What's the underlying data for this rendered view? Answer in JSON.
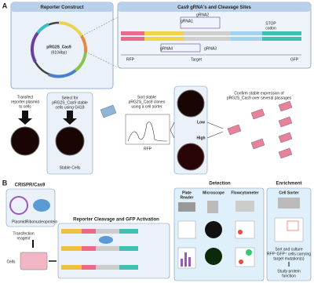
{
  "panel_a": {
    "label": "A",
    "reporter_title": "Reporter Construct",
    "plasmid_name": "pRG2S_Cas9",
    "plasmid_size": "(6104bp)",
    "cleavage_title": "Cas9 gRNA's and Cleavage Sites",
    "grnas": [
      "gRNA1",
      "gRNA2",
      "gRNA3",
      "gRNA4"
    ],
    "stop_codon": [
      "STOP",
      "codon"
    ],
    "rfp": "RFP",
    "target": "Target",
    "gfp": "GFP",
    "transfect": [
      "Transfect",
      "reporter plasmid",
      "to cells"
    ],
    "select": [
      "Select for",
      "pRG2S_Cas9 stable",
      "cells using G418"
    ],
    "stable_cells": "Stable Cells",
    "sort": [
      "Sort stable",
      "pRG2S_Cas9 clones",
      "using a cell sorter"
    ],
    "histogram_axis": "RFP",
    "low": "Low",
    "high": "High",
    "confirm": [
      "Confirm stable expression of",
      "pRG2S_Cas9 over several passages"
    ]
  },
  "panel_b": {
    "label": "B",
    "crispr_title": "CRISPR/Cas9",
    "plasmid": "Plasmid",
    "rnp": "Ribonucleoprotein",
    "transfection": [
      "Transfection",
      "reagent"
    ],
    "cells": "Cells",
    "reporter_title": "Reporter Cleavage and GFP Activation",
    "detection_title": "Detection",
    "enrichment_title": "Enrichment",
    "plate_reader": [
      "Plate",
      "Reader"
    ],
    "microscope": "Microscope",
    "flowcytometer": "Flowcytometer",
    "cell_sorter": "Cell Sorter",
    "sort_culture": [
      "Sort and culture",
      "RFP⁺GFP⁺ cells carrying",
      "target mutation(s)"
    ],
    "study": [
      "Study protein",
      "function"
    ]
  }
}
